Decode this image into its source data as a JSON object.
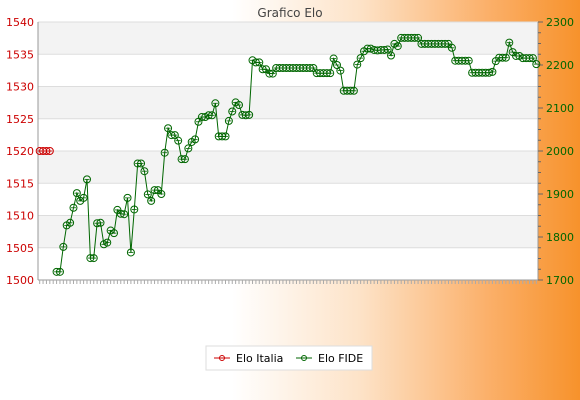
{
  "chart_data": {
    "type": "line",
    "title": "Grafico Elo",
    "y_left": {
      "min": 1500,
      "max": 1540,
      "ticks": [
        1500,
        1505,
        1510,
        1515,
        1520,
        1525,
        1530,
        1535,
        1540
      ],
      "color": "#cc0000"
    },
    "y_right": {
      "min": 1700,
      "max": 2300,
      "ticks": [
        1700,
        1800,
        1900,
        2000,
        2100,
        2200,
        2300
      ],
      "color": "#006600"
    },
    "grid": true,
    "legend_position": "bottom",
    "series": [
      {
        "name": "Elo Italia",
        "axis": "left",
        "color": "#cc0000",
        "values": [
          1520,
          1520,
          1520,
          1520
        ]
      },
      {
        "name": "Elo FIDE",
        "axis": "right",
        "color": "#006600",
        "values": [
          null,
          null,
          null,
          null,
          null,
          1719,
          1719,
          1777,
          1827,
          1833,
          1868,
          1902,
          1884,
          1891,
          1934,
          1751,
          1751,
          1832,
          1833,
          1783,
          1787,
          1815,
          1809,
          1863,
          1854,
          1853,
          1891,
          1764,
          1864,
          1971,
          1971,
          1953,
          1899,
          1884,
          1909,
          1909,
          1900,
          1996,
          2053,
          2037,
          2037,
          2024,
          1981,
          1981,
          2006,
          2021,
          2027,
          2068,
          2079,
          2079,
          2083,
          2083,
          2111,
          2034,
          2034,
          2034,
          2070,
          2092,
          2113,
          2107,
          2084,
          2083,
          2084,
          2211,
          2206,
          2206,
          2190,
          2190,
          2180,
          2180,
          2193,
          2193,
          2193,
          2193,
          2193,
          2193,
          2193,
          2193,
          2193,
          2193,
          2193,
          2193,
          2181,
          2181,
          2181,
          2181,
          2181,
          2215,
          2200,
          2187,
          2140,
          2140,
          2140,
          2140,
          2201,
          2216,
          2232,
          2238,
          2238,
          2235,
          2234,
          2235,
          2235,
          2236,
          2222,
          2249,
          2244,
          2263,
          2263,
          2263,
          2263,
          2263,
          2263,
          2249,
          2249,
          2249,
          2249,
          2249,
          2249,
          2249,
          2249,
          2249,
          2240,
          2210,
          2210,
          2210,
          2210,
          2210,
          2182,
          2182,
          2182,
          2182,
          2182,
          2182,
          2184,
          2209,
          2217,
          2217,
          2217,
          2252,
          2230,
          2221,
          2221,
          2216,
          2216,
          2216,
          2216,
          2202
        ]
      }
    ]
  }
}
